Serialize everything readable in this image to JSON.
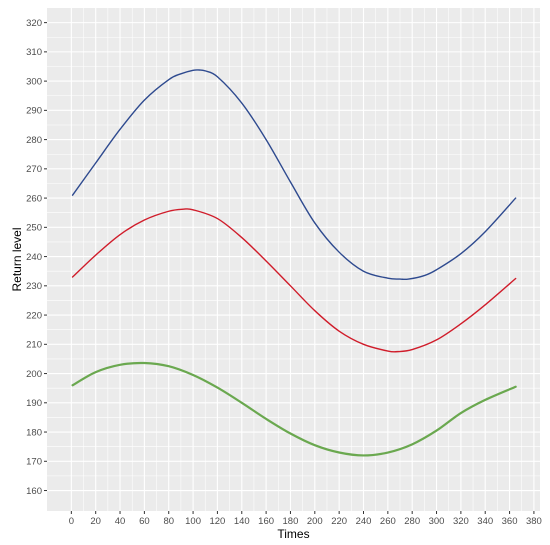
{
  "chart_data": {
    "type": "line",
    "title": "",
    "xlabel": "Times",
    "ylabel": "Return level",
    "xlim": [
      -20,
      385
    ],
    "ylim": [
      153,
      325
    ],
    "x_ticks": [
      0,
      20,
      40,
      60,
      80,
      100,
      120,
      140,
      160,
      180,
      200,
      220,
      240,
      260,
      280,
      300,
      320,
      340,
      360,
      380
    ],
    "y_ticks": [
      160,
      170,
      180,
      190,
      200,
      210,
      220,
      230,
      240,
      250,
      260,
      270,
      280,
      290,
      300,
      310,
      320
    ],
    "grid": true,
    "legend": "none",
    "background_color": "#ebebeb",
    "grid_color": "#ffffff",
    "series": [
      {
        "color": "#2e4a8f",
        "x": [
          1,
          20,
          40,
          60,
          80,
          90,
          100,
          105,
          110,
          120,
          140,
          160,
          180,
          200,
          220,
          240,
          260,
          270,
          277,
          290,
          300,
          320,
          340,
          365
        ],
        "y": [
          261,
          272,
          283.5,
          293.5,
          300.5,
          302.5,
          303.7,
          303.8,
          303.5,
          301.5,
          292.5,
          280,
          265.5,
          251.5,
          241.5,
          235,
          232.6,
          232.3,
          232.3,
          233.5,
          235.5,
          241,
          248.5,
          260
        ]
      },
      {
        "color": "#d01c2a",
        "x": [
          1,
          20,
          40,
          60,
          80,
          92,
          100,
          120,
          140,
          160,
          180,
          200,
          220,
          240,
          260,
          268,
          280,
          300,
          320,
          340,
          365
        ],
        "y": [
          233,
          240.5,
          247.5,
          252.5,
          255.5,
          256.2,
          256,
          253,
          246.5,
          238.5,
          230,
          221.5,
          214.5,
          210,
          207.7,
          207.5,
          208.2,
          211.5,
          217,
          223.5,
          232.5
        ]
      },
      {
        "color": "#6aa84f",
        "x": [
          1,
          20,
          40,
          60,
          80,
          100,
          120,
          140,
          160,
          180,
          200,
          220,
          240,
          260,
          280,
          300,
          320,
          340,
          365
        ],
        "y": [
          196,
          200.5,
          203,
          203.6,
          202.5,
          199.5,
          195.2,
          190,
          184.5,
          179.5,
          175.5,
          173,
          172,
          173,
          175.8,
          180.5,
          186.5,
          191,
          195.5
        ]
      }
    ]
  }
}
